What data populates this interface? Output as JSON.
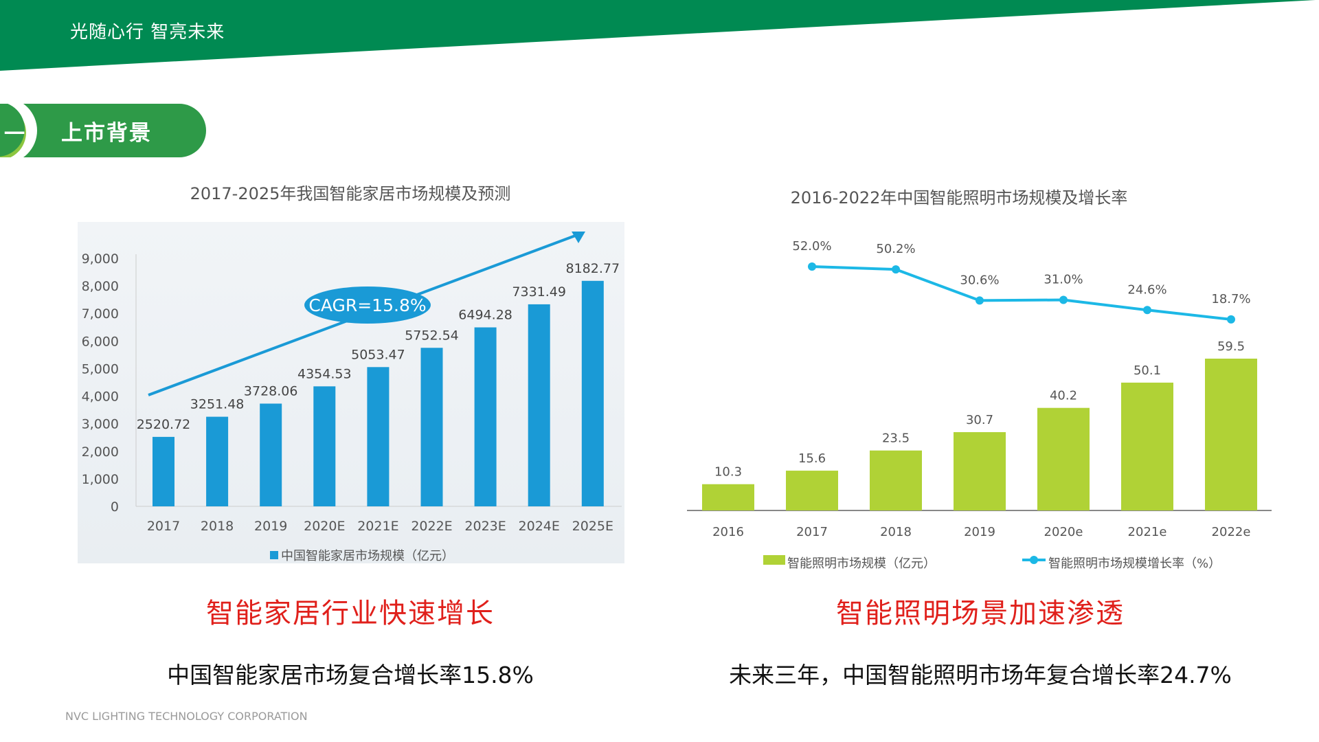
{
  "header": {
    "slogan": "光随心行  智亮未来",
    "color": "#008a52"
  },
  "section": {
    "number": "一",
    "title": "上市背景"
  },
  "left_heading": "智能家居行业快速增长",
  "left_subtitle": "中国智能家居市场复合增长率15.8%",
  "right_heading": "智能照明场景加速渗透",
  "right_subtitle": "未来三年，中国智能照明市场年复合增长率24.7%",
  "footer": "NVC LIGHTING TECHNOLOGY CORPORATION",
  "chart_data": [
    {
      "type": "bar",
      "title": "2017-2025年我国智能家居市场规模及预测",
      "categories": [
        "2017",
        "2018",
        "2019",
        "2020E",
        "2021E",
        "2022E",
        "2023E",
        "2024E",
        "2025E"
      ],
      "series": [
        {
          "name": "中国智能家居市场规模（亿元）",
          "values": [
            2520.72,
            3251.48,
            3728.06,
            4354.53,
            5053.47,
            5752.54,
            6494.28,
            7331.49,
            8182.77
          ],
          "labels": [
            "2520.72",
            "3251.48",
            "3728.06",
            "4354.53",
            "5053.47",
            "5752.54",
            "6494.28",
            "7331.49",
            "8182.77"
          ],
          "color": "#1a9ad6"
        }
      ],
      "yticks": [
        "0",
        "1,000",
        "2,000",
        "3,000",
        "4,000",
        "5,000",
        "6,000",
        "7,000",
        "8,000",
        "9,000"
      ],
      "ylim": [
        0,
        9000
      ],
      "annotation": "CAGR=15.8%",
      "legend": "bottom"
    },
    {
      "type": "bar+line",
      "title": "2016-2022年中国智能照明市场规模及增长率",
      "categories": [
        "2016",
        "2017",
        "2018",
        "2019",
        "2020e",
        "2021e",
        "2022e"
      ],
      "series": [
        {
          "name": "智能照明市场规模（亿元）",
          "type": "bar",
          "values": [
            10.3,
            15.6,
            23.5,
            30.7,
            40.2,
            50.1,
            59.5
          ],
          "labels": [
            "10.3",
            "15.6",
            "23.5",
            "30.7",
            "40.2",
            "50.1",
            "59.5"
          ],
          "color": "#b0d236"
        },
        {
          "name": "智能照明市场规模增长率（%）",
          "type": "line",
          "values": [
            null,
            52.0,
            50.2,
            30.6,
            31.0,
            24.6,
            18.7
          ],
          "labels": [
            "",
            "52.0%",
            "50.2%",
            "30.6%",
            "31.0%",
            "24.6%",
            "18.7%"
          ],
          "color": "#1cb8e6"
        }
      ],
      "legend": "bottom"
    }
  ]
}
